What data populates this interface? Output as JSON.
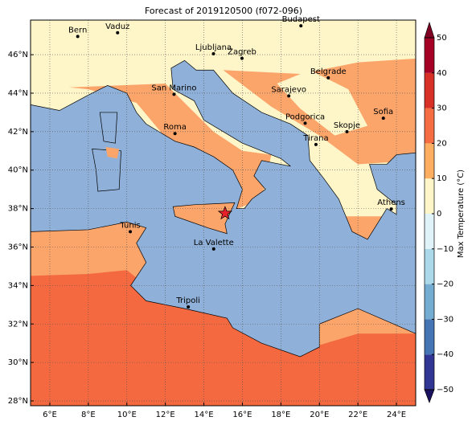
{
  "title": "Forecast of 2019120500 (f072-096)",
  "map": {
    "xlim": [
      5,
      25
    ],
    "ylim": [
      27.75,
      47.8
    ],
    "xticks": [
      {
        "value": 6,
        "label": "6°E"
      },
      {
        "value": 8,
        "label": "8°E"
      },
      {
        "value": 10,
        "label": "10°E"
      },
      {
        "value": 12,
        "label": "12°E"
      },
      {
        "value": 14,
        "label": "14°E"
      },
      {
        "value": 16,
        "label": "16°E"
      },
      {
        "value": 18,
        "label": "18°E"
      },
      {
        "value": 20,
        "label": "20°E"
      },
      {
        "value": 22,
        "label": "22°E"
      },
      {
        "value": 24,
        "label": "24°E"
      }
    ],
    "yticks": [
      {
        "value": 28,
        "label": "28°N"
      },
      {
        "value": 30,
        "label": "30°N"
      },
      {
        "value": 32,
        "label": "32°N"
      },
      {
        "value": 34,
        "label": "34°N"
      },
      {
        "value": 36,
        "label": "36°N"
      },
      {
        "value": 38,
        "label": "38°N"
      },
      {
        "value": 40,
        "label": "40°N"
      },
      {
        "value": 42,
        "label": "42°N"
      },
      {
        "value": 44,
        "label": "44°N"
      },
      {
        "value": 46,
        "label": "46°N"
      }
    ],
    "grid": true,
    "cities": [
      "Bern",
      "Vaduz",
      "Budapest",
      "Ljubljana",
      "Zagreb",
      "San Marino",
      "Belgrade",
      "Sarajevo",
      "Roma",
      "Podgorica",
      "Sofia",
      "Skopje",
      "Tirana",
      "Athens",
      "Tunis",
      "La Valette",
      "Tripoli"
    ]
  },
  "colorbar": {
    "label": "Max Temperature (°C)",
    "lim": [
      -50,
      50
    ],
    "ticks": [
      {
        "value": -50,
        "label": "−50"
      },
      {
        "value": -40,
        "label": "−40"
      },
      {
        "value": -30,
        "label": "−30"
      },
      {
        "value": -20,
        "label": "−20"
      },
      {
        "value": -10,
        "label": "−10"
      },
      0,
      10,
      20,
      30,
      40,
      50
    ],
    "colors": [
      "#313695",
      "#4575b4",
      "#74add1",
      "#abd9e9",
      "#e0f3f8",
      "#fef6c9",
      "#fdae61",
      "#f46d43",
      "#d73027",
      "#a50026"
    ]
  }
}
